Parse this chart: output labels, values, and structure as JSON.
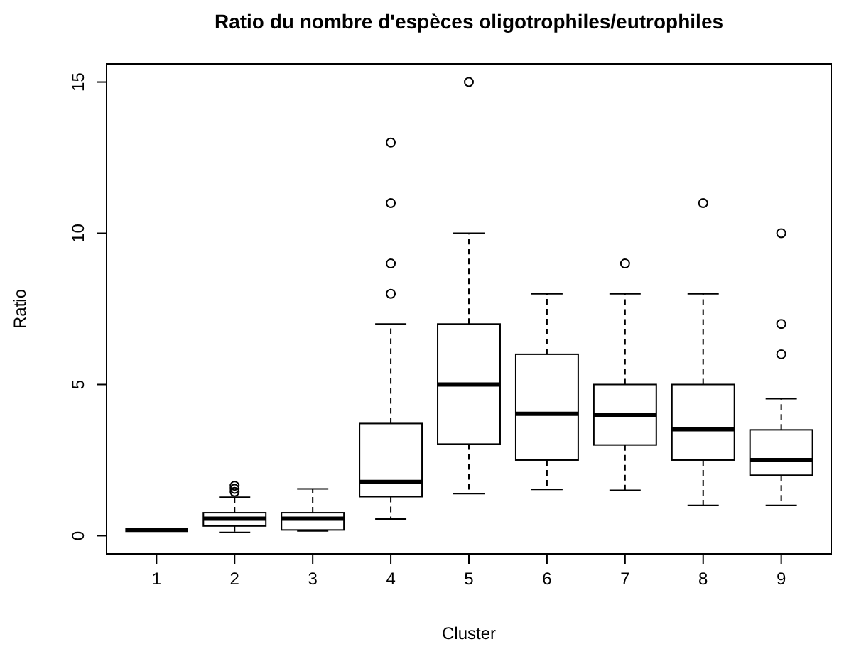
{
  "chart_data": {
    "type": "box",
    "title": "Ratio du nombre d'espèces oligotrophiles/eutrophiles",
    "xlabel": "Cluster",
    "ylabel": "Ratio",
    "categories": [
      "1",
      "2",
      "3",
      "4",
      "5",
      "6",
      "7",
      "8",
      "9"
    ],
    "ylim": [
      -0.6,
      15.6
    ],
    "yticks": [
      0,
      5,
      10,
      15
    ],
    "grid": false,
    "boxes": [
      {
        "low": 0.19,
        "q1": 0.19,
        "median": 0.19,
        "q3": 0.19,
        "high": 0.19
      },
      {
        "low": 0.11,
        "q1": 0.32,
        "median": 0.56,
        "q3": 0.76,
        "high": 1.27,
        "outliers": [
          1.45,
          1.55,
          1.65
        ]
      },
      {
        "low": 0.16,
        "q1": 0.19,
        "median": 0.56,
        "q3": 0.76,
        "high": 1.55
      },
      {
        "low": 0.55,
        "q1": 1.29,
        "median": 1.78,
        "q3": 3.71,
        "high": 7.0,
        "outliers": [
          8,
          9,
          11,
          13
        ]
      },
      {
        "low": 1.39,
        "q1": 3.03,
        "median": 5.0,
        "q3": 7.0,
        "high": 10,
        "outliers": [
          15
        ]
      },
      {
        "low": 1.53,
        "q1": 2.5,
        "median": 4.03,
        "q3": 6.0,
        "high": 8
      },
      {
        "low": 1.5,
        "q1": 3.0,
        "median": 4.0,
        "q3": 5.0,
        "high": 8,
        "outliers": [
          9
        ]
      },
      {
        "low": 1.0,
        "q1": 2.5,
        "median": 3.52,
        "q3": 5.0,
        "high": 8,
        "outliers": [
          11
        ]
      },
      {
        "low": 1.0,
        "q1": 2.0,
        "median": 2.5,
        "q3": 3.5,
        "high": 4.53,
        "outliers": [
          6,
          7,
          10
        ]
      }
    ]
  }
}
